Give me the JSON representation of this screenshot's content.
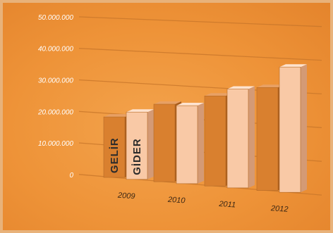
{
  "chart_data": {
    "type": "bar",
    "title": "",
    "xlabel": "",
    "ylabel": "",
    "categories": [
      "2009",
      "2010",
      "2011",
      "2012"
    ],
    "series": [
      {
        "name": "GELİR",
        "values": [
          19000000,
          24000000,
          27500000,
          31000000
        ]
      },
      {
        "name": "GİDER",
        "values": [
          21000000,
          24000000,
          30000000,
          37500000
        ]
      }
    ],
    "ylim": [
      0,
      50000000
    ],
    "yticks": [
      "0",
      "10.000.000",
      "20.000.000",
      "30.000.000",
      "40.000.000",
      "50.000.000"
    ],
    "grid": true,
    "legend": "labels inside first category bars",
    "colors": {
      "GELİR": "#d9802f",
      "GİDER": "#f9c9a6",
      "background": "#ef973b",
      "grid": "#c9772b"
    }
  }
}
